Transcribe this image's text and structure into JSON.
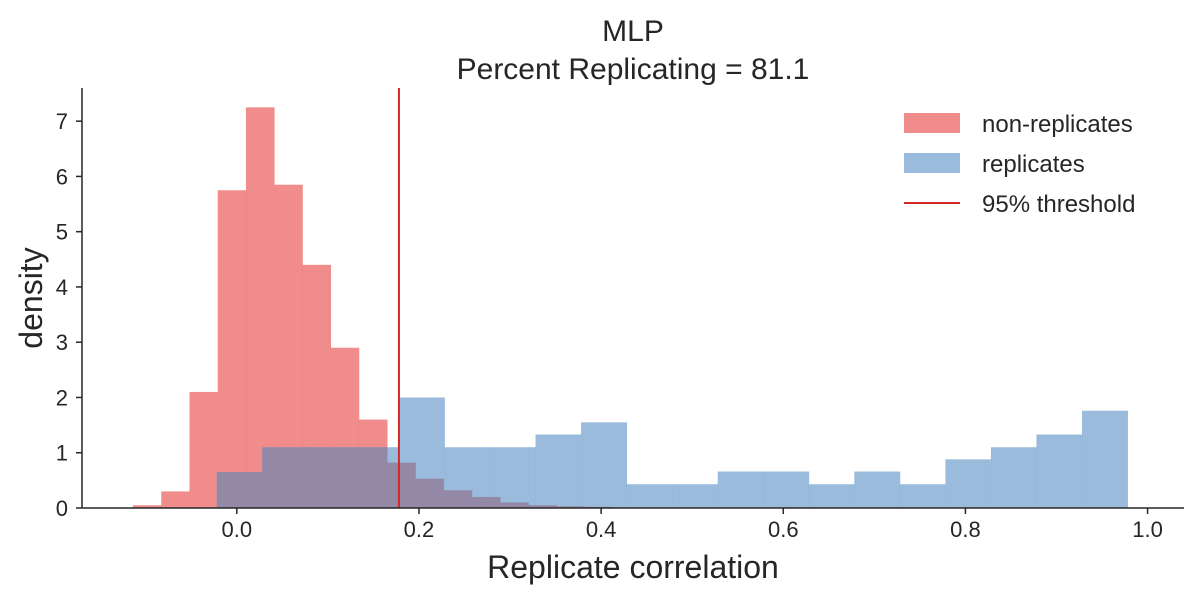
{
  "chart_data": {
    "type": "bar",
    "title_lines": [
      "MLP",
      "Percent Replicating = 81.1"
    ],
    "xlabel": "Replicate correlation",
    "ylabel": "density",
    "xlim": [
      -0.17,
      1.04
    ],
    "ylim": [
      0,
      7.6
    ],
    "xticks": [
      "0.0",
      "0.2",
      "0.4",
      "0.6",
      "0.8",
      "1.0"
    ],
    "xtick_values": [
      0.0,
      0.2,
      0.4,
      0.6,
      0.8,
      1.0
    ],
    "yticks": [
      "0",
      "1",
      "2",
      "3",
      "4",
      "5",
      "6",
      "7"
    ],
    "ytick_values": [
      0,
      1,
      2,
      3,
      4,
      5,
      6,
      7
    ],
    "grid": false,
    "legend_position": "top-right",
    "series": [
      {
        "name": "non-replicates",
        "color": "#f08080",
        "opacity": 0.9,
        "bin_start": -0.114,
        "bin_width": 0.031,
        "values": [
          0.05,
          0.3,
          2.1,
          5.75,
          7.25,
          5.85,
          4.4,
          2.9,
          1.6,
          0.82,
          0.53,
          0.32,
          0.2,
          0.1,
          0.05,
          0.03,
          0.02
        ]
      },
      {
        "name": "replicates",
        "color": "#8fb4d7",
        "opacity": 0.9,
        "bin_start": -0.022,
        "bin_width": 0.05,
        "values": [
          0.65,
          1.1,
          1.1,
          1.1,
          2.0,
          1.1,
          1.1,
          1.33,
          1.55,
          0.43,
          0.43,
          0.66,
          0.66,
          0.43,
          0.66,
          0.43,
          0.88,
          1.1,
          1.33,
          1.76
        ]
      }
    ],
    "threshold": {
      "name": "95% threshold",
      "x": 0.178,
      "color": "#d62728"
    },
    "overlap_color": "#9389a6"
  }
}
